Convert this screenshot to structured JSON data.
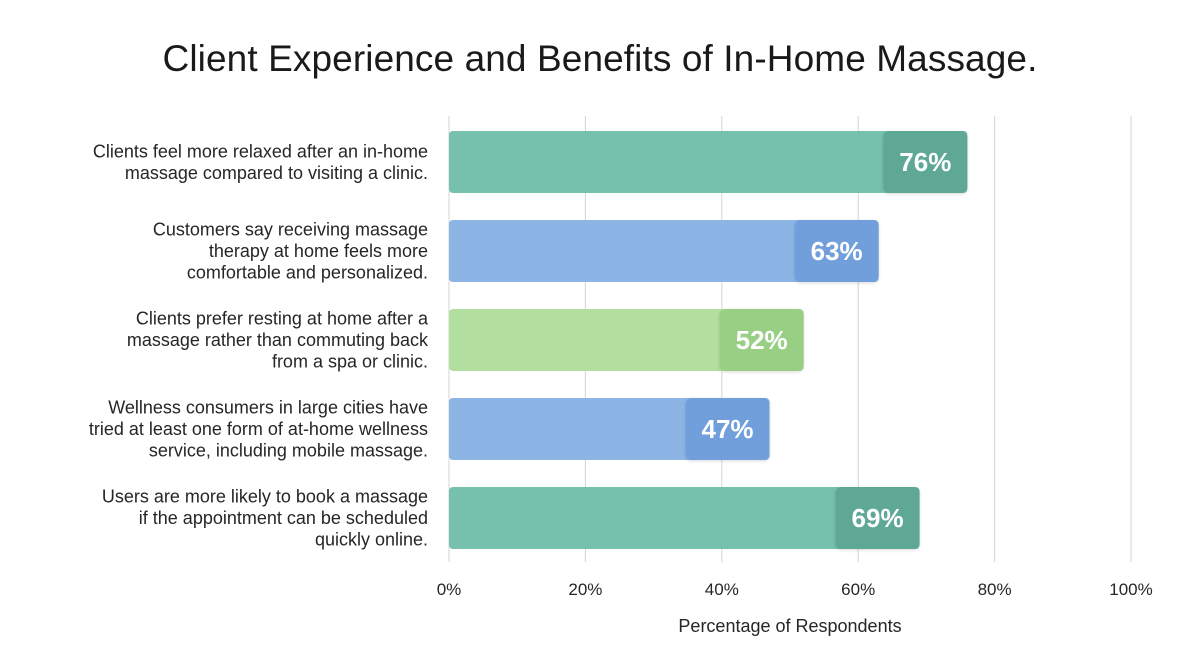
{
  "chart_data": {
    "type": "bar",
    "orientation": "horizontal",
    "title": "Client Experience and Benefits of In-Home Massage.",
    "xlabel": "Percentage of Respondents",
    "ylabel": "",
    "xlim": [
      0,
      100
    ],
    "x_ticks": [
      0,
      20,
      40,
      60,
      80,
      100
    ],
    "x_tick_labels": [
      "0%",
      "20%",
      "40%",
      "60%",
      "80%",
      "100%"
    ],
    "grid": "vertical",
    "legend": "none",
    "categories": [
      [
        "Clients feel more relaxed after an in-home",
        "massage compared to visiting a clinic."
      ],
      [
        "Customers say receiving massage",
        "therapy at home feels more",
        "comfortable and personalized."
      ],
      [
        "Clients prefer resting at home after a",
        "massage rather than commuting back",
        "from a spa or clinic."
      ],
      [
        "Wellness consumers in large cities have",
        "tried at least one form of at-home wellness",
        "service, including mobile massage."
      ],
      [
        "Users are more likely to book a massage",
        "if the appointment can be scheduled",
        "quickly online."
      ]
    ],
    "values": [
      76,
      63,
      52,
      47,
      69
    ],
    "value_labels": [
      "76%",
      "63%",
      "52%",
      "47%",
      "69%"
    ],
    "bar_colors": [
      "#76c0ae",
      "#8cb5e6",
      "#b2dfa0",
      "#8cb5e6",
      "#76c0ae"
    ],
    "badge_colors": [
      "#5ea895",
      "#709fdb",
      "#98cf85",
      "#709fdb",
      "#5ea895"
    ]
  }
}
